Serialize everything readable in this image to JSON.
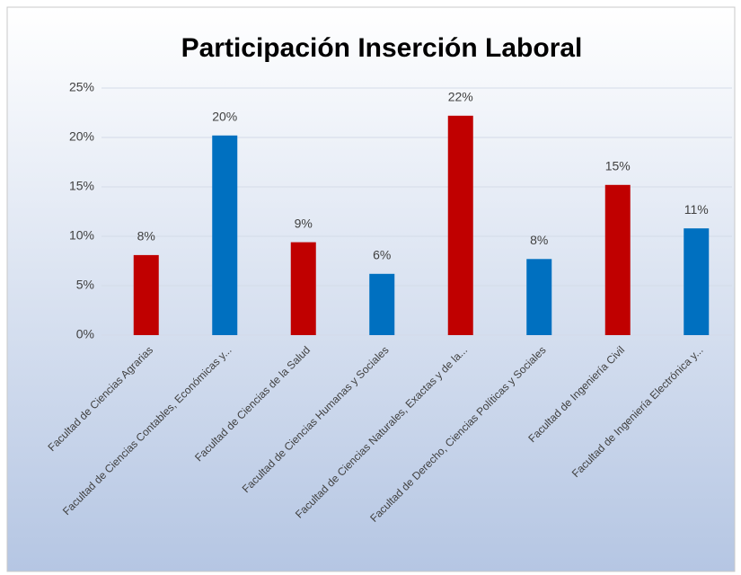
{
  "chart_data": {
    "type": "bar",
    "title": "Participación Inserción Laboral",
    "categories": [
      "Facultad de Ciencias Agrarias",
      "Facultad de Ciencias Contables, Económicas y...",
      "Facultad de Ciencias de la Salud",
      "Facultad de Ciencias Humanas y Sociales",
      "Facultad de Ciencias Naturales, Exactas y de la...",
      "Facultad de Derecho, Ciencias Políticas y Sociales",
      "Facultad de Ingeniería Civil",
      "Facultad de Ingeniería Electrónica y..."
    ],
    "values": [
      8.1,
      20.2,
      9.4,
      6.2,
      22.2,
      7.7,
      15.2,
      10.8
    ],
    "value_labels": [
      "8%",
      "20%",
      "9%",
      "6%",
      "22%",
      "8%",
      "15%",
      "11%"
    ],
    "colors": [
      "#c00000",
      "#0070c0",
      "#c00000",
      "#0070c0",
      "#c00000",
      "#0070c0",
      "#c00000",
      "#0070c0"
    ],
    "ylim": [
      0,
      25
    ],
    "yticks": [
      {
        "value": 0,
        "label": "0%"
      },
      {
        "value": 5,
        "label": "5%"
      },
      {
        "value": 10,
        "label": "10%"
      },
      {
        "value": 15,
        "label": "15%"
      },
      {
        "value": 20,
        "label": "20%"
      },
      {
        "value": 25,
        "label": "25%"
      }
    ],
    "grid": true
  }
}
